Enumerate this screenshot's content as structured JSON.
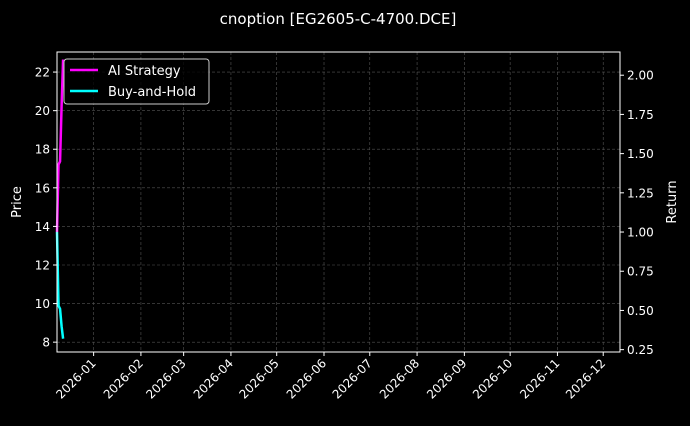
{
  "chart_data": {
    "type": "line",
    "title": "cnoption [EG2605-C-4700.DCE]",
    "ylabel_left": "Price",
    "ylabel_right": "Return",
    "xlabel": "",
    "xlim": [
      "2025-12-08",
      "2026-12-12"
    ],
    "ylim_left": [
      7.49,
      23.04
    ],
    "ylim_right": [
      0.235,
      2.148
    ],
    "x_ticks": [
      "2026-01",
      "2026-02",
      "2026-03",
      "2026-04",
      "2026-05",
      "2026-06",
      "2026-07",
      "2026-08",
      "2026-09",
      "2026-10",
      "2026-11",
      "2026-12"
    ],
    "y_ticks_left": [
      "8",
      "10",
      "12",
      "14",
      "16",
      "18",
      "20",
      "22"
    ],
    "y_ticks_right": [
      "0.25",
      "0.50",
      "0.75",
      "1.00",
      "1.25",
      "1.50",
      "1.75",
      "2.00"
    ],
    "grid": true,
    "legend_position": "top-left",
    "x": [
      "2025-12-08",
      "2025-12-09",
      "2025-12-10",
      "2025-12-11",
      "2025-12-12"
    ],
    "series": [
      {
        "name": "AI Strategy",
        "color": "#ff00ff",
        "axis": "right",
        "values": [
          1.0,
          1.43,
          1.45,
          1.8,
          2.1
        ]
      },
      {
        "name": "Buy-and-Hold",
        "color": "#00ffff",
        "axis": "right",
        "values": [
          1.0,
          0.53,
          0.51,
          0.4,
          0.32
        ]
      }
    ]
  }
}
